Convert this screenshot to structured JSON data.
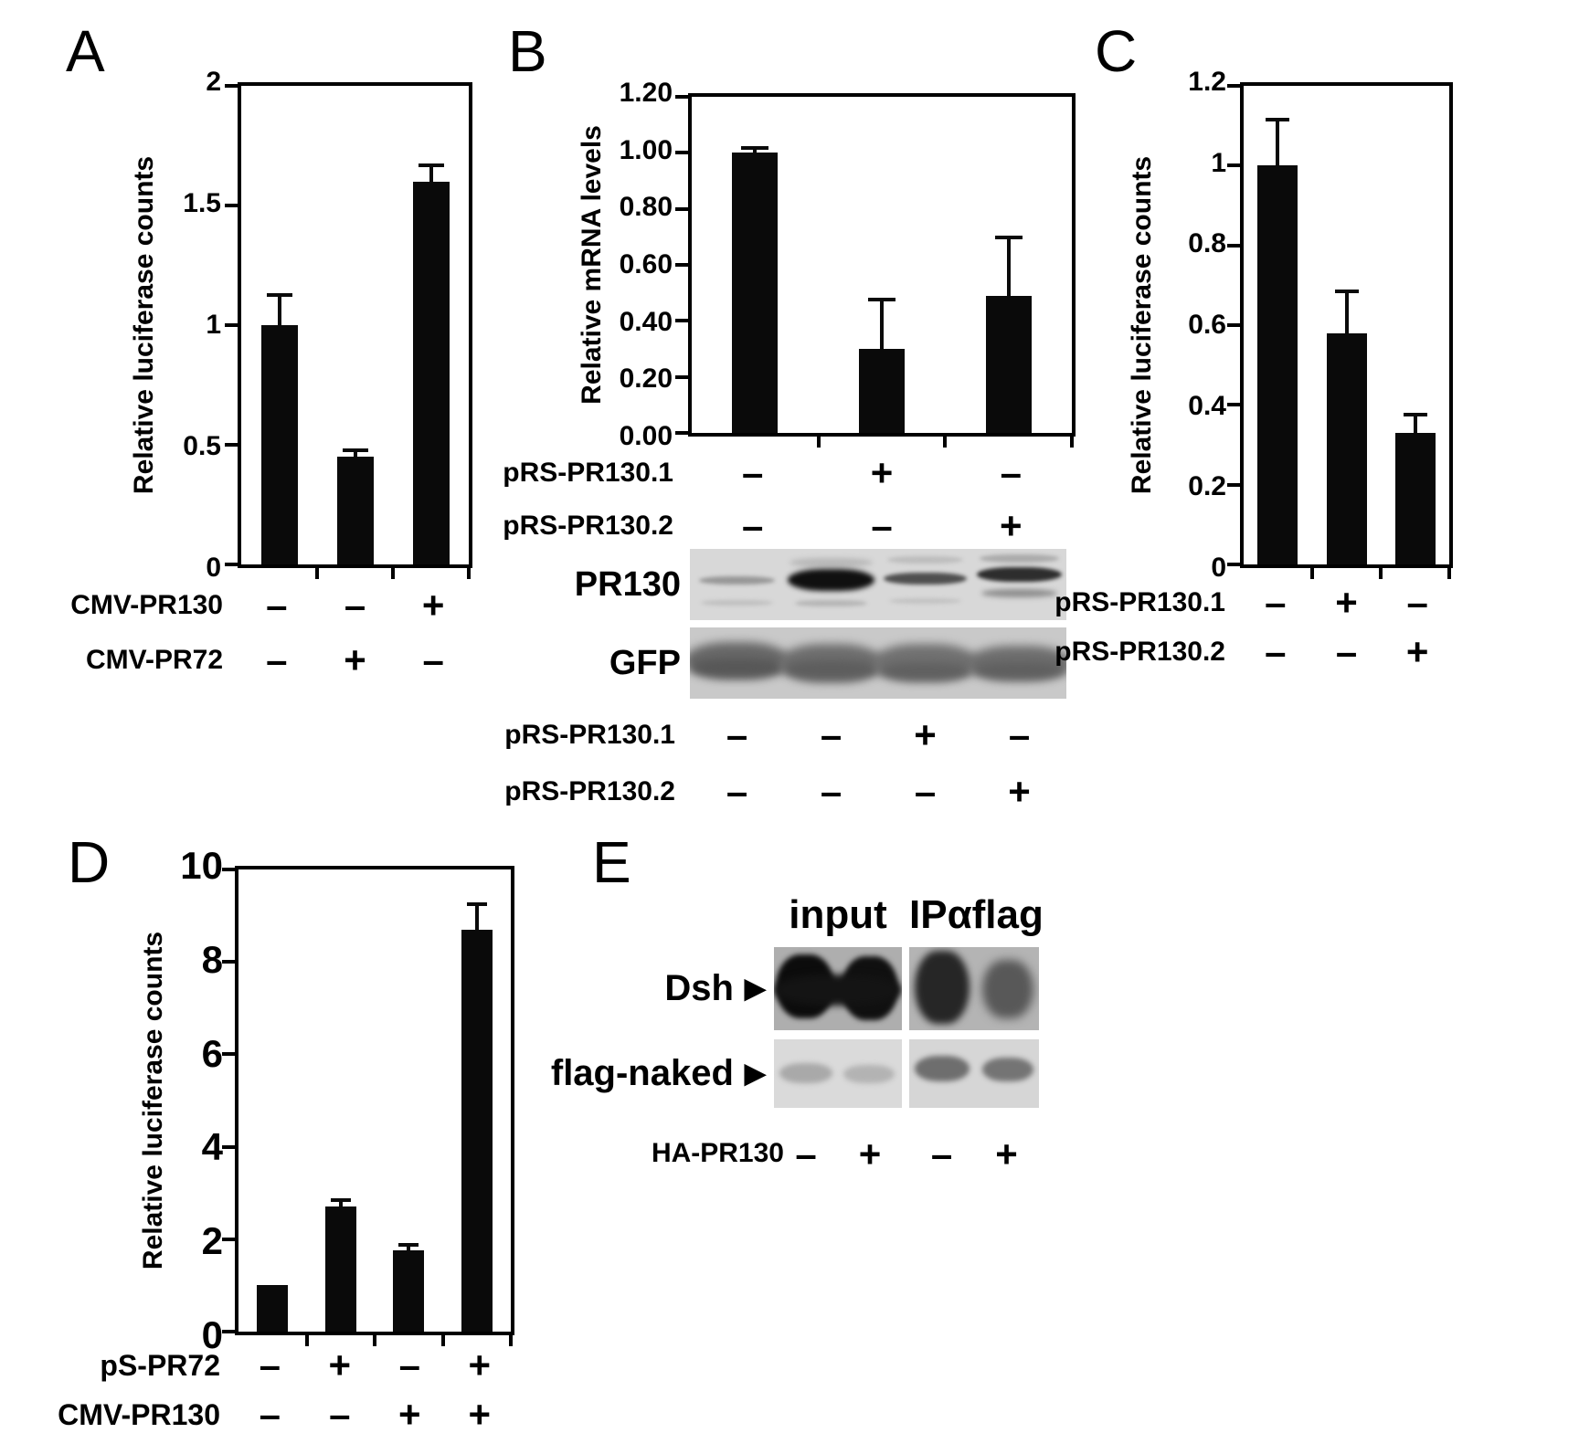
{
  "figure_bg": "#ffffff",
  "bar_color": "#0a0a0a",
  "panels": {
    "A": {
      "letter": "A"
    },
    "B": {
      "letter": "B",
      "blot_labels": [
        "PR130",
        "GFP"
      ],
      "blot_condition_rows": [
        {
          "label": "pRS-PR130.1",
          "signs": [
            "–",
            "–",
            "+",
            "–"
          ]
        },
        {
          "label": "pRS-PR130.2",
          "signs": [
            "–",
            "–",
            "–",
            "+"
          ]
        }
      ]
    },
    "C": {
      "letter": "C"
    },
    "D": {
      "letter": "D"
    },
    "E": {
      "letter": "E",
      "group_headers": [
        "input",
        "IPαflag"
      ],
      "band_rows": [
        {
          "label": "Dsh",
          "arrow": "▶"
        },
        {
          "label": "flag-naked",
          "arrow": "▶"
        }
      ],
      "condition_rows": [
        {
          "label": "HA-PR130",
          "signs": [
            "–",
            "+",
            "–",
            "+"
          ]
        }
      ]
    }
  },
  "chart_data": [
    {
      "id": "A",
      "type": "bar",
      "grid": false,
      "title": "",
      "xlabel": "",
      "ylabel": "Relative luciferase counts",
      "ylim": [
        0,
        2
      ],
      "yticks": [
        0,
        0.5,
        1,
        1.5,
        2
      ],
      "ytick_labels": [
        "0",
        "0.5",
        "1",
        "1.5",
        "2"
      ],
      "values": [
        1.0,
        0.45,
        1.6
      ],
      "errors": [
        0.12,
        0.02,
        0.06
      ],
      "bar_color": "#0a0a0a",
      "condition_rows": [
        {
          "label": "CMV-PR130",
          "signs": [
            "–",
            "–",
            "+"
          ]
        },
        {
          "label": "CMV-PR72",
          "signs": [
            "–",
            "+",
            "–"
          ]
        }
      ]
    },
    {
      "id": "B",
      "type": "bar",
      "grid": false,
      "title": "",
      "xlabel": "",
      "ylabel": "Relative mRNA levels",
      "ylim": [
        0,
        1.2
      ],
      "yticks": [
        0,
        0.2,
        0.4,
        0.6,
        0.8,
        1.0,
        1.2
      ],
      "ytick_labels": [
        "0.00",
        "0.20",
        "0.40",
        "0.60",
        "0.80",
        "1.00",
        "1.20"
      ],
      "values": [
        1.0,
        0.3,
        0.49
      ],
      "errors": [
        0.01,
        0.17,
        0.2
      ],
      "bar_color": "#0a0a0a",
      "condition_rows": [
        {
          "label": "pRS-PR130.1",
          "signs": [
            "–",
            "+",
            "–"
          ]
        },
        {
          "label": "pRS-PR130.2",
          "signs": [
            "–",
            "–",
            "+"
          ]
        }
      ]
    },
    {
      "id": "C",
      "type": "bar",
      "grid": false,
      "title": "",
      "xlabel": "",
      "ylabel": "Relative luciferase counts",
      "ylim": [
        0,
        1.2
      ],
      "yticks": [
        0,
        0.2,
        0.4,
        0.6,
        0.8,
        1.0,
        1.2
      ],
      "ytick_labels": [
        "0",
        "0.2",
        "0.4",
        "0.6",
        "0.8",
        "1",
        "1.2"
      ],
      "values": [
        1.0,
        0.58,
        0.33
      ],
      "errors": [
        0.11,
        0.1,
        0.04
      ],
      "bar_color": "#0a0a0a",
      "condition_rows": [
        {
          "label": "pRS-PR130.1",
          "signs": [
            "–",
            "+",
            "–"
          ]
        },
        {
          "label": "pRS-PR130.2",
          "signs": [
            "–",
            "–",
            "+"
          ]
        }
      ]
    },
    {
      "id": "D",
      "type": "bar",
      "grid": false,
      "title": "",
      "xlabel": "",
      "ylabel": "Relative luciferase counts",
      "ylim": [
        0,
        10
      ],
      "yticks": [
        0,
        2,
        4,
        6,
        8,
        10
      ],
      "ytick_labels": [
        "0",
        "2",
        "4",
        "6",
        "8",
        "10"
      ],
      "values": [
        1.0,
        2.7,
        1.75,
        8.7
      ],
      "errors": [
        0,
        0.1,
        0.08,
        0.5
      ],
      "bar_color": "#0a0a0a",
      "condition_rows": [
        {
          "label": "pS-PR72",
          "signs": [
            "–",
            "+",
            "–",
            "+"
          ]
        },
        {
          "label": "CMV-PR130",
          "signs": [
            "–",
            "–",
            "+",
            "+"
          ]
        }
      ]
    }
  ]
}
